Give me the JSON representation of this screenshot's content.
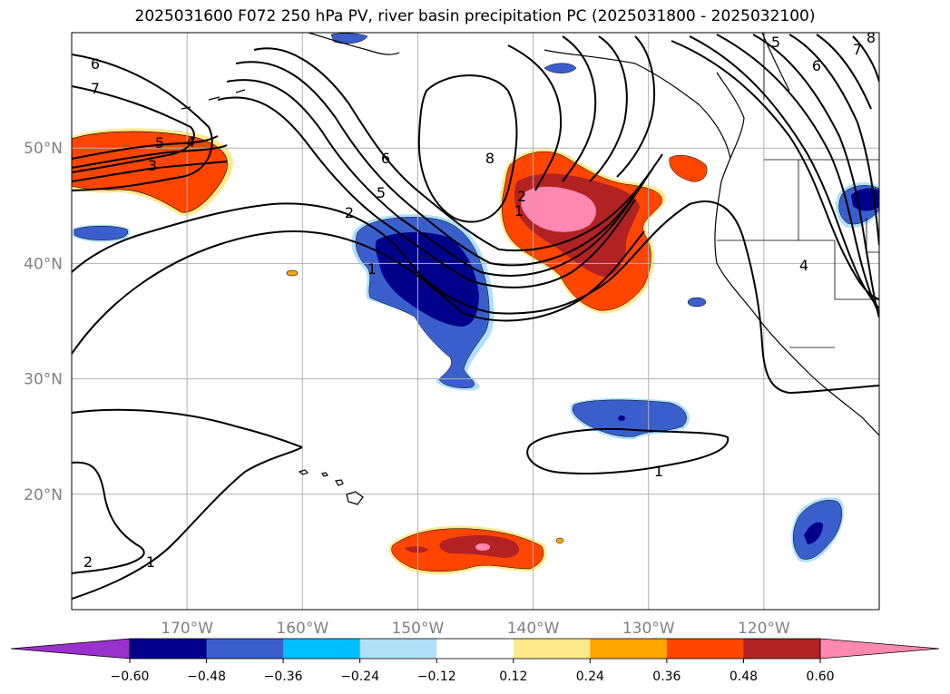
{
  "title": "2025031600 F072 250 hPa PV, river basin precipitation PC (2025031800 - 2025032100)",
  "map": {
    "projection": "PlateCarree",
    "lon_range": [
      -180,
      -110
    ],
    "lat_range": [
      10,
      60
    ],
    "lon_ticks": [
      {
        "value": -170,
        "label": "170°W"
      },
      {
        "value": -160,
        "label": "160°W"
      },
      {
        "value": -150,
        "label": "150°W"
      },
      {
        "value": -140,
        "label": "140°W"
      },
      {
        "value": -130,
        "label": "130°W"
      },
      {
        "value": -120,
        "label": "120°W"
      }
    ],
    "lat_ticks": [
      {
        "value": 50,
        "label": "50°N"
      },
      {
        "value": 40,
        "label": "40°N"
      },
      {
        "value": 30,
        "label": "30°N"
      },
      {
        "value": 20,
        "label": "20°N"
      }
    ],
    "gridlines": true,
    "contour_labels": [
      "6",
      "7",
      "5",
      "4",
      "3",
      "2",
      "1",
      "8",
      "6",
      "5",
      "2",
      "1",
      "4",
      "6",
      "7",
      "5",
      "8",
      "1",
      "2",
      "1"
    ]
  },
  "colorbar": {
    "extend": "both",
    "levels": [
      -0.6,
      -0.48,
      -0.36,
      -0.24,
      -0.12,
      0.12,
      0.24,
      0.36,
      0.48,
      0.6
    ],
    "tick_labels": [
      "−0.60",
      "−0.48",
      "−0.36",
      "−0.24",
      "−0.12",
      "0.12",
      "0.24",
      "0.36",
      "0.48",
      "0.60"
    ],
    "colors": [
      "#9932cc",
      "#00008b",
      "#3a5fcd",
      "#00bfff",
      "#b0e0f8",
      "#ffffff",
      "#ffe98c",
      "#ffa500",
      "#ff4500",
      "#b22222",
      "#ff88b0"
    ]
  }
}
